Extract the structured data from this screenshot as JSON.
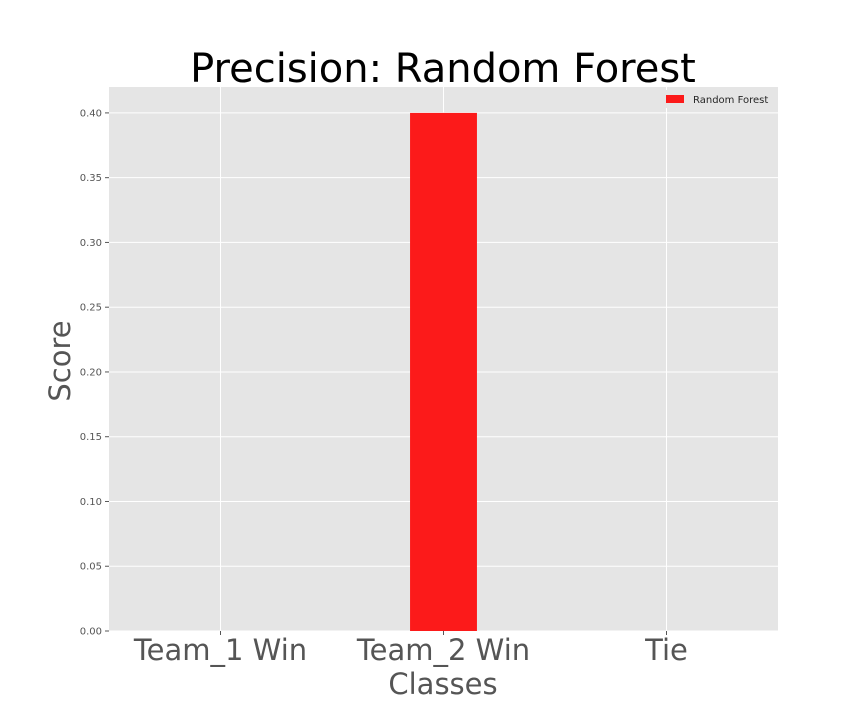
{
  "chart_data": {
    "type": "bar",
    "title": "Precision: Random Forest",
    "xlabel": "Classes",
    "ylabel": "Score",
    "categories": [
      "Team_1 Win",
      "Team_2 Win",
      "Tie"
    ],
    "series": [
      {
        "name": "Random Forest",
        "values": [
          0.0,
          0.4,
          0.0
        ],
        "color": "#fc1a1a"
      }
    ],
    "ylim": [
      0,
      0.42
    ],
    "yticks": [
      "0.00",
      "0.05",
      "0.10",
      "0.15",
      "0.20",
      "0.25",
      "0.30",
      "0.35",
      "0.40"
    ],
    "grid": true,
    "legend_position": "top-right",
    "colors": {
      "plot_background": "#e5e5e5",
      "grid": "#ffffff",
      "tick_label": "#555555",
      "title": "#000000"
    }
  }
}
